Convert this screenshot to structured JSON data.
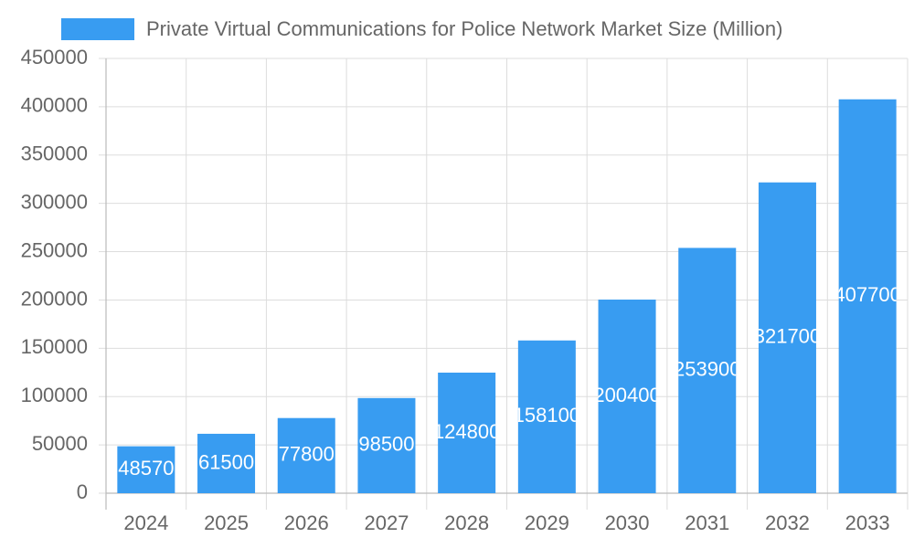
{
  "chart_data": {
    "type": "bar",
    "categories": [
      "2024",
      "2025",
      "2026",
      "2027",
      "2028",
      "2029",
      "2030",
      "2031",
      "2032",
      "2033"
    ],
    "series": [
      {
        "name": "Private Virtual Communications for Police Network Market Size (Million)",
        "color": "#389cf1",
        "values": [
          48570,
          61500,
          77800,
          98500,
          124800,
          158100,
          200400,
          253900,
          321700,
          407700
        ]
      }
    ],
    "ylim": [
      0,
      450000
    ],
    "yticks": [
      0,
      50000,
      100000,
      150000,
      200000,
      250000,
      300000,
      350000,
      400000,
      450000
    ],
    "grid": true,
    "legend": "top"
  }
}
